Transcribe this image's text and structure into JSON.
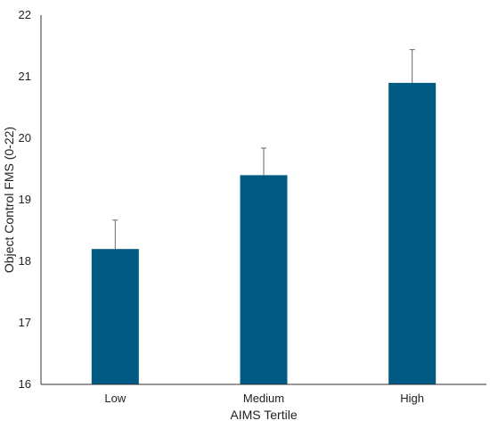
{
  "chart_data": {
    "type": "bar",
    "title": "",
    "xlabel": "AIMS Tertile",
    "ylabel": "Object Control FMS (0-22)",
    "categories": [
      "Low",
      "Medium",
      "High"
    ],
    "values": [
      18.2,
      19.4,
      20.9
    ],
    "error_upper": [
      0.47,
      0.44,
      0.54
    ],
    "ylim": [
      16,
      22
    ],
    "yticks": [
      "16",
      "17",
      "18",
      "19",
      "20",
      "21",
      "22"
    ],
    "grid": false,
    "legend": "none",
    "bar_color": "#005a84",
    "error_bar_color": "#666666",
    "axis_color": "#333333"
  }
}
